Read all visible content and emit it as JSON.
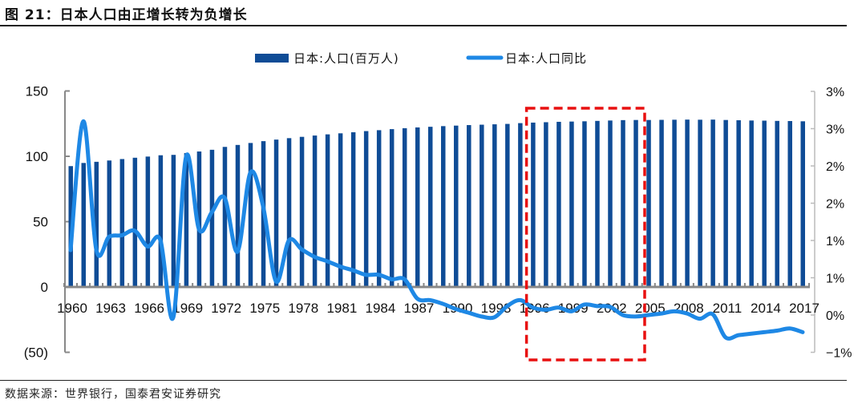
{
  "figure": {
    "title": "图 21：日本人口由正增长转为负增长",
    "source": "数据来源：世界银行，国泰君安证券研究"
  },
  "legend": {
    "bar_label": "日本:人口(百万人)",
    "line_label": "日本:人口同比"
  },
  "axes": {
    "left_ticks": [
      "150",
      "100",
      "50",
      "0",
      "(50)"
    ],
    "right_ticks": [
      "3%",
      "3%",
      "2%",
      "2%",
      "1%",
      "1%",
      "0%",
      "−1%"
    ],
    "x_ticks": [
      "1960",
      "1963",
      "1966",
      "1969",
      "1972",
      "1975",
      "1978",
      "1981",
      "1984",
      "1987",
      "1990",
      "1993",
      "1996",
      "1999",
      "2002",
      "2005",
      "2008",
      "2011",
      "2014",
      "2017"
    ]
  },
  "colors": {
    "bar": "#0F4C96",
    "line": "#1E88E5",
    "highlight_box": "#E81010",
    "negative_label": "#E02020",
    "axis": "#888888"
  },
  "highlight": {
    "start_year": 1995.5,
    "end_year": 2004.7,
    "style": "dashed red rectangle"
  },
  "chart_data": {
    "type": "bar+line",
    "title": "日本人口由正增长转为负增长",
    "xlabel": "",
    "ylabel_left": "人口(百万人)",
    "ylabel_right": "人口同比",
    "ylim_left": [
      -50,
      150
    ],
    "ylim_right": [
      -0.5,
      3.0
    ],
    "legend_position": "top",
    "grid": false,
    "categories": [
      1960,
      1961,
      1962,
      1963,
      1964,
      1965,
      1966,
      1967,
      1968,
      1969,
      1970,
      1971,
      1972,
      1973,
      1974,
      1975,
      1976,
      1977,
      1978,
      1979,
      1980,
      1981,
      1982,
      1983,
      1984,
      1985,
      1986,
      1987,
      1988,
      1989,
      1990,
      1991,
      1992,
      1993,
      1994,
      1995,
      1996,
      1997,
      1998,
      1999,
      2000,
      2001,
      2002,
      2003,
      2004,
      2005,
      2006,
      2007,
      2008,
      2009,
      2010,
      2011,
      2012,
      2013,
      2014,
      2015,
      2016,
      2017
    ],
    "series": [
      {
        "name": "日本:人口(百万人)",
        "type": "bar",
        "axis": "left",
        "values": [
          92.5,
          94.9,
          95.8,
          96.8,
          97.9,
          98.9,
          99.8,
          100.8,
          101.1,
          102.5,
          103.7,
          105.0,
          107.2,
          108.7,
          110.2,
          111.6,
          112.8,
          113.9,
          114.9,
          115.9,
          116.8,
          117.6,
          118.4,
          119.3,
          120.0,
          120.8,
          121.5,
          122.1,
          122.6,
          123.1,
          123.5,
          123.9,
          124.2,
          124.5,
          124.8,
          125.4,
          125.8,
          126.1,
          126.4,
          126.6,
          126.8,
          127.1,
          127.4,
          127.7,
          127.8,
          127.8,
          127.9,
          128.0,
          128.1,
          128.0,
          128.1,
          127.8,
          127.6,
          127.4,
          127.3,
          127.1,
          127.0,
          126.8
        ]
      },
      {
        "name": "日本:人口同比",
        "type": "line",
        "axis": "right",
        "unit": "%",
        "values": [
          0.87,
          2.6,
          0.88,
          1.05,
          1.07,
          1.13,
          0.92,
          1.0,
          -0.03,
          2.13,
          1.15,
          1.38,
          1.57,
          0.85,
          1.91,
          1.45,
          0.45,
          1.0,
          0.88,
          0.78,
          0.72,
          0.65,
          0.6,
          0.54,
          0.54,
          0.48,
          0.48,
          0.22,
          0.2,
          0.15,
          0.08,
          0.03,
          -0.02,
          -0.03,
          0.12,
          0.2,
          0.1,
          0.07,
          0.1,
          0.05,
          0.14,
          0.12,
          0.11,
          0.0,
          -0.02,
          0.0,
          0.02,
          0.05,
          0.02,
          -0.05,
          0.01,
          -0.3,
          -0.27,
          -0.25,
          -0.23,
          -0.21,
          -0.18,
          -0.23
        ]
      }
    ]
  }
}
